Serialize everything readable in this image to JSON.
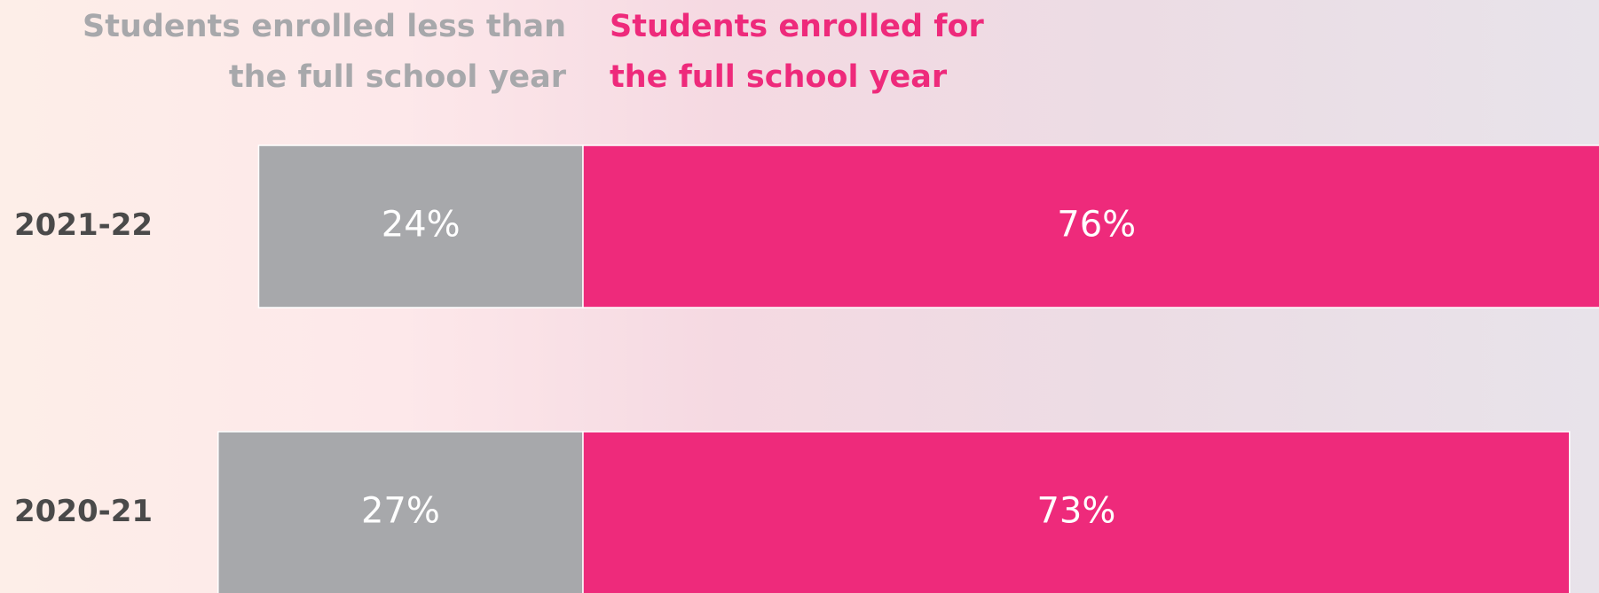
{
  "chart_data": {
    "type": "bar",
    "orientation": "horizontal-diverging",
    "categories": [
      "2021-22",
      "2020-21"
    ],
    "series": [
      {
        "name": "Students enrolled less than the full school year",
        "color": "#a7a8ab",
        "values": [
          24,
          27
        ],
        "value_labels": [
          "24%",
          "27%"
        ]
      },
      {
        "name": "Students enrolled for the full school year",
        "color": "#ee2a7b",
        "values": [
          76,
          73
        ],
        "value_labels": [
          "76%",
          "73%"
        ]
      }
    ]
  }
}
